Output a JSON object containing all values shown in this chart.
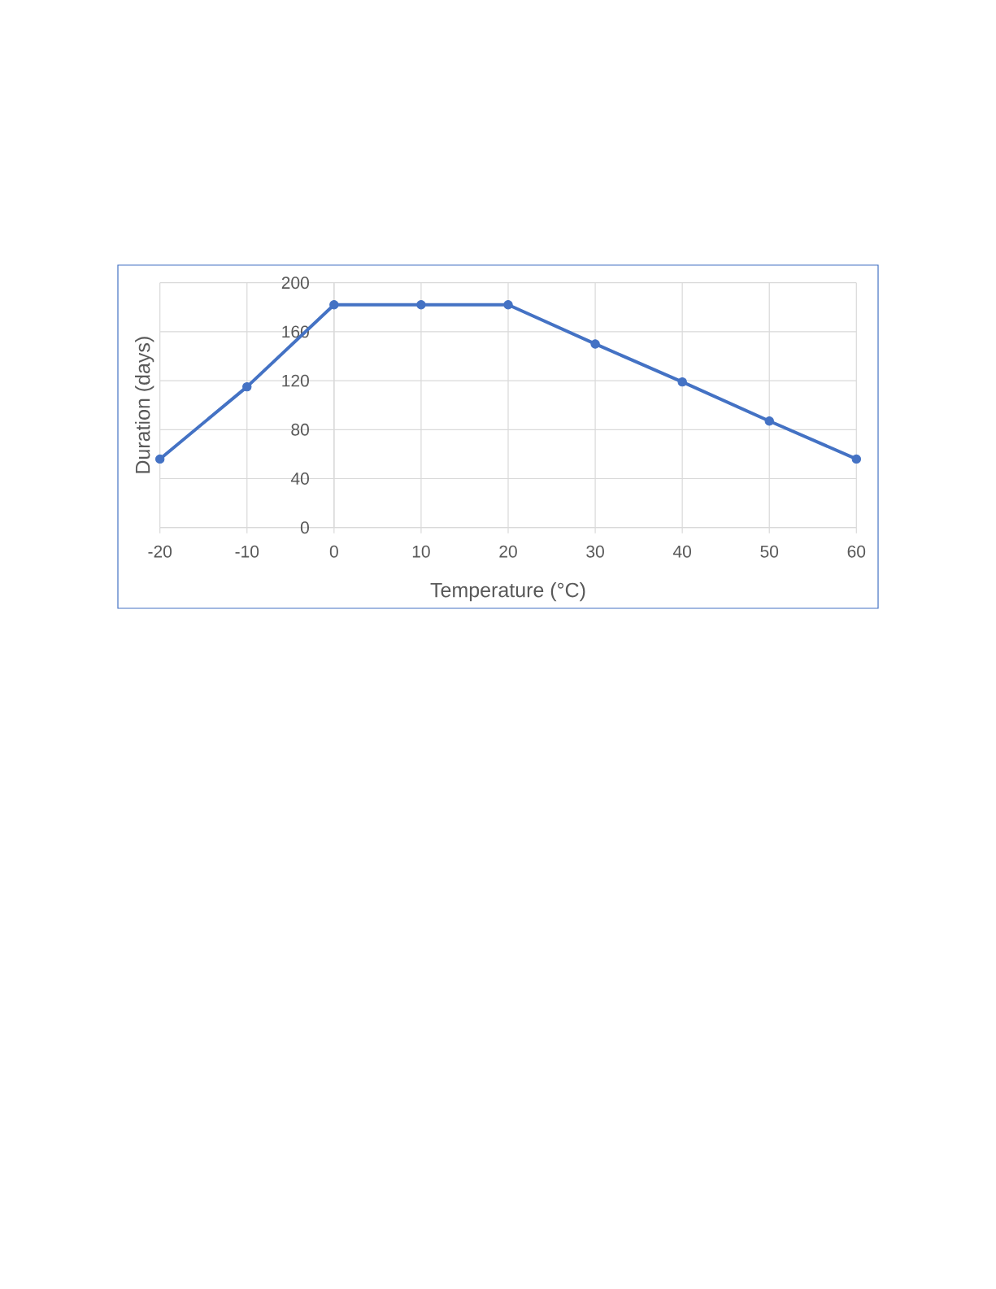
{
  "chart_data": {
    "type": "line",
    "xlabel": "Temperature (°C)",
    "ylabel": "Duration (days)",
    "x": [
      -20,
      -10,
      0,
      10,
      20,
      30,
      40,
      50,
      60
    ],
    "series": [
      {
        "color": "#4472c4",
        "values": [
          56,
          115,
          182,
          182,
          182,
          150,
          119,
          87,
          56
        ]
      }
    ],
    "xlim": [
      -20,
      60
    ],
    "ylim": [
      0,
      200
    ],
    "xticks": [
      -20,
      -10,
      0,
      10,
      20,
      30,
      40,
      50,
      60
    ],
    "yticks": [
      0,
      40,
      80,
      120,
      160,
      200
    ],
    "grid": true,
    "marker": "circle",
    "line_style": "solid"
  }
}
